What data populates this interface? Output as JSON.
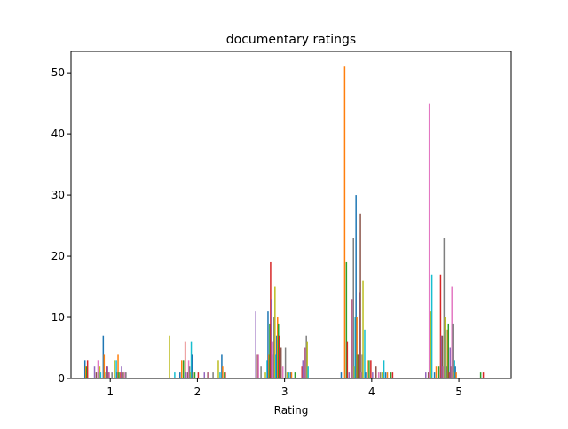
{
  "chart_data": {
    "type": "bar",
    "title": "documentary ratings",
    "xlabel": "Rating",
    "ylabel": "",
    "categories": [
      "1",
      "2",
      "3",
      "4",
      "5"
    ],
    "yticks": [
      "0",
      "10",
      "20",
      "30",
      "40",
      "50"
    ],
    "ylim": [
      0,
      53.5
    ],
    "xlim": [
      0.55,
      5.6
    ],
    "grid": false,
    "legend": "none",
    "bars": [
      {
        "x": 0.71,
        "value": 3
      },
      {
        "x": 0.72,
        "value": 2
      },
      {
        "x": 0.73,
        "value": 2
      },
      {
        "x": 0.74,
        "value": 3
      },
      {
        "x": 0.82,
        "value": 2
      },
      {
        "x": 0.84,
        "value": 1
      },
      {
        "x": 0.86,
        "value": 3
      },
      {
        "x": 0.87,
        "value": 1
      },
      {
        "x": 0.88,
        "value": 2
      },
      {
        "x": 0.89,
        "value": 1
      },
      {
        "x": 0.92,
        "value": 7
      },
      {
        "x": 0.93,
        "value": 4
      },
      {
        "x": 0.95,
        "value": 1
      },
      {
        "x": 0.96,
        "value": 2
      },
      {
        "x": 0.97,
        "value": 2
      },
      {
        "x": 0.98,
        "value": 1
      },
      {
        "x": 0.99,
        "value": 1
      },
      {
        "x": 1.02,
        "value": 1
      },
      {
        "x": 1.05,
        "value": 3
      },
      {
        "x": 1.07,
        "value": 3
      },
      {
        "x": 1.08,
        "value": 1
      },
      {
        "x": 1.09,
        "value": 4
      },
      {
        "x": 1.1,
        "value": 1
      },
      {
        "x": 1.12,
        "value": 1
      },
      {
        "x": 1.13,
        "value": 2
      },
      {
        "x": 1.15,
        "value": 1
      },
      {
        "x": 1.17,
        "value": 1
      },
      {
        "x": 1.18,
        "value": 1
      },
      {
        "x": 1.68,
        "value": 7
      },
      {
        "x": 1.74,
        "value": 1
      },
      {
        "x": 1.8,
        "value": 1
      },
      {
        "x": 1.82,
        "value": 3
      },
      {
        "x": 1.84,
        "value": 3
      },
      {
        "x": 1.86,
        "value": 6
      },
      {
        "x": 1.87,
        "value": 1
      },
      {
        "x": 1.89,
        "value": 1
      },
      {
        "x": 1.9,
        "value": 3
      },
      {
        "x": 1.91,
        "value": 2
      },
      {
        "x": 1.92,
        "value": 1
      },
      {
        "x": 1.93,
        "value": 6
      },
      {
        "x": 1.94,
        "value": 4
      },
      {
        "x": 1.95,
        "value": 1
      },
      {
        "x": 1.97,
        "value": 1
      },
      {
        "x": 2.01,
        "value": 1
      },
      {
        "x": 2.08,
        "value": 1
      },
      {
        "x": 2.12,
        "value": 1
      },
      {
        "x": 2.13,
        "value": 1
      },
      {
        "x": 2.18,
        "value": 1
      },
      {
        "x": 2.24,
        "value": 3
      },
      {
        "x": 2.26,
        "value": 1
      },
      {
        "x": 2.28,
        "value": 4
      },
      {
        "x": 2.29,
        "value": 2
      },
      {
        "x": 2.31,
        "value": 1
      },
      {
        "x": 2.32,
        "value": 1
      },
      {
        "x": 2.67,
        "value": 11
      },
      {
        "x": 2.69,
        "value": 4
      },
      {
        "x": 2.7,
        "value": 4
      },
      {
        "x": 2.73,
        "value": 2
      },
      {
        "x": 2.78,
        "value": 1
      },
      {
        "x": 2.8,
        "value": 3
      },
      {
        "x": 2.81,
        "value": 11
      },
      {
        "x": 2.82,
        "value": 4
      },
      {
        "x": 2.83,
        "value": 9
      },
      {
        "x": 2.84,
        "value": 19
      },
      {
        "x": 2.85,
        "value": 13
      },
      {
        "x": 2.86,
        "value": 4
      },
      {
        "x": 2.87,
        "value": 6
      },
      {
        "x": 2.88,
        "value": 10
      },
      {
        "x": 2.89,
        "value": 15
      },
      {
        "x": 2.9,
        "value": 4
      },
      {
        "x": 2.91,
        "value": 7
      },
      {
        "x": 2.92,
        "value": 10
      },
      {
        "x": 2.93,
        "value": 9
      },
      {
        "x": 2.94,
        "value": 7
      },
      {
        "x": 2.95,
        "value": 5
      },
      {
        "x": 2.96,
        "value": 5
      },
      {
        "x": 2.98,
        "value": 2
      },
      {
        "x": 3.01,
        "value": 5
      },
      {
        "x": 3.03,
        "value": 1
      },
      {
        "x": 3.05,
        "value": 1
      },
      {
        "x": 3.07,
        "value": 1
      },
      {
        "x": 3.08,
        "value": 1
      },
      {
        "x": 3.12,
        "value": 1
      },
      {
        "x": 3.2,
        "value": 2
      },
      {
        "x": 3.21,
        "value": 3
      },
      {
        "x": 3.23,
        "value": 5
      },
      {
        "x": 3.24,
        "value": 5
      },
      {
        "x": 3.25,
        "value": 7
      },
      {
        "x": 3.26,
        "value": 6
      },
      {
        "x": 3.27,
        "value": 2
      },
      {
        "x": 3.65,
        "value": 1
      },
      {
        "x": 3.69,
        "value": 51
      },
      {
        "x": 3.71,
        "value": 19
      },
      {
        "x": 3.72,
        "value": 6
      },
      {
        "x": 3.74,
        "value": 1
      },
      {
        "x": 3.77,
        "value": 13
      },
      {
        "x": 3.78,
        "value": 13
      },
      {
        "x": 3.79,
        "value": 23
      },
      {
        "x": 3.8,
        "value": 2
      },
      {
        "x": 3.81,
        "value": 10
      },
      {
        "x": 3.82,
        "value": 30
      },
      {
        "x": 3.83,
        "value": 10
      },
      {
        "x": 3.84,
        "value": 4
      },
      {
        "x": 3.85,
        "value": 4
      },
      {
        "x": 3.86,
        "value": 14
      },
      {
        "x": 3.87,
        "value": 27
      },
      {
        "x": 3.88,
        "value": 1
      },
      {
        "x": 3.89,
        "value": 4
      },
      {
        "x": 3.9,
        "value": 16
      },
      {
        "x": 3.92,
        "value": 8
      },
      {
        "x": 3.93,
        "value": 1
      },
      {
        "x": 3.95,
        "value": 3
      },
      {
        "x": 3.97,
        "value": 3
      },
      {
        "x": 3.99,
        "value": 3
      },
      {
        "x": 4.01,
        "value": 1
      },
      {
        "x": 4.05,
        "value": 2
      },
      {
        "x": 4.08,
        "value": 1
      },
      {
        "x": 4.1,
        "value": 1
      },
      {
        "x": 4.12,
        "value": 1
      },
      {
        "x": 4.14,
        "value": 3
      },
      {
        "x": 4.16,
        "value": 1
      },
      {
        "x": 4.18,
        "value": 1
      },
      {
        "x": 4.22,
        "value": 1
      },
      {
        "x": 4.24,
        "value": 1
      },
      {
        "x": 4.62,
        "value": 1
      },
      {
        "x": 4.65,
        "value": 1
      },
      {
        "x": 4.66,
        "value": 45
      },
      {
        "x": 4.67,
        "value": 3
      },
      {
        "x": 4.68,
        "value": 11
      },
      {
        "x": 4.69,
        "value": 17
      },
      {
        "x": 4.72,
        "value": 1
      },
      {
        "x": 4.74,
        "value": 2
      },
      {
        "x": 4.77,
        "value": 2
      },
      {
        "x": 4.79,
        "value": 17
      },
      {
        "x": 4.8,
        "value": 7
      },
      {
        "x": 4.81,
        "value": 7
      },
      {
        "x": 4.82,
        "value": 2
      },
      {
        "x": 4.83,
        "value": 23
      },
      {
        "x": 4.84,
        "value": 10
      },
      {
        "x": 4.85,
        "value": 8
      },
      {
        "x": 4.86,
        "value": 2
      },
      {
        "x": 4.87,
        "value": 8
      },
      {
        "x": 4.88,
        "value": 9
      },
      {
        "x": 4.89,
        "value": 1
      },
      {
        "x": 4.9,
        "value": 5
      },
      {
        "x": 4.91,
        "value": 2
      },
      {
        "x": 4.92,
        "value": 15
      },
      {
        "x": 4.93,
        "value": 9
      },
      {
        "x": 4.94,
        "value": 1
      },
      {
        "x": 4.95,
        "value": 3
      },
      {
        "x": 4.96,
        "value": 2
      },
      {
        "x": 4.97,
        "value": 1
      },
      {
        "x": 5.25,
        "value": 1
      },
      {
        "x": 5.28,
        "value": 1
      }
    ]
  }
}
